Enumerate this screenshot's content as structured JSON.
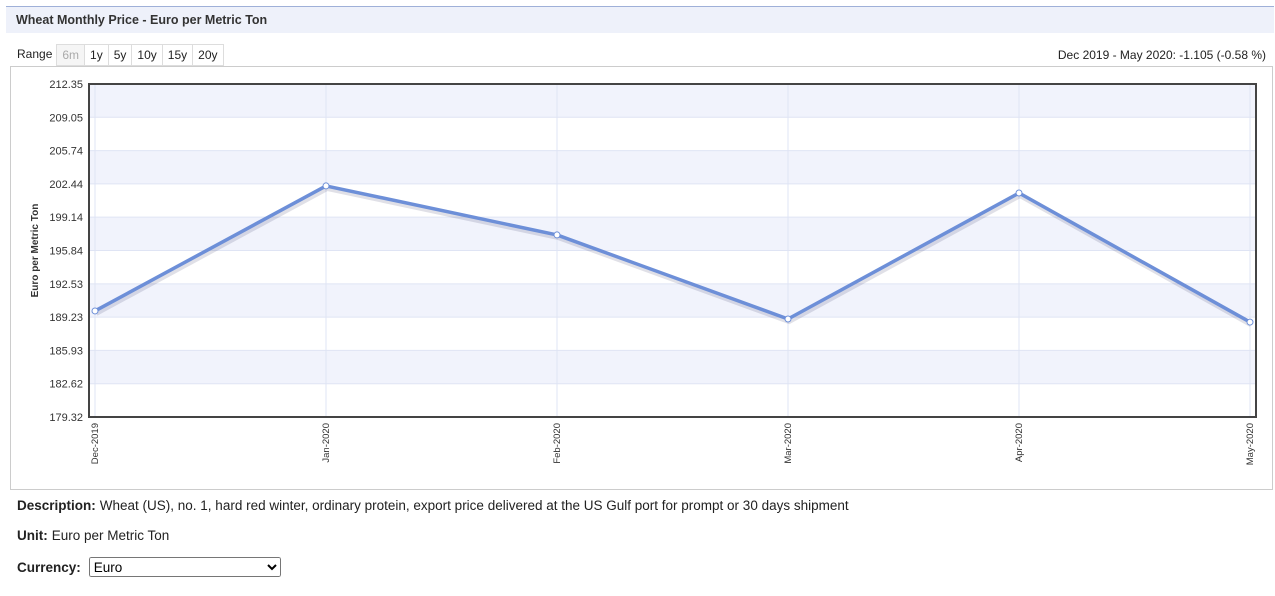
{
  "header": {
    "title": "Wheat Monthly Price - Euro per Metric Ton"
  },
  "range": {
    "label": "Range",
    "options": [
      "6m",
      "1y",
      "5y",
      "10y",
      "15y",
      "20y"
    ]
  },
  "change_text": "Dec 2019 - May 2020: -1.105 (-0.58 %)",
  "chart_data": {
    "type": "line",
    "y_label": "Euro per Metric Ton",
    "categories": [
      "Dec-2019",
      "Jan-2020",
      "Feb-2020",
      "Mar-2020",
      "Apr-2020",
      "May-2020"
    ],
    "values": [
      189.84,
      202.24,
      197.38,
      189.04,
      201.54,
      188.735
    ],
    "color": "#6d8fd8",
    "ylim": [
      179.32,
      212.35
    ],
    "yticks": [
      179.32,
      182.62,
      185.93,
      189.23,
      192.53,
      195.84,
      199.14,
      202.44,
      205.74,
      209.05,
      212.35
    ],
    "grid": true,
    "band_color": "#f1f3fc"
  },
  "description": {
    "label": "Description:",
    "text": "Wheat (US), no. 1, hard red winter, ordinary protein, export price delivered at the US Gulf port for prompt or 30 days shipment"
  },
  "unit": {
    "label": "Unit:",
    "text": "Euro per Metric Ton"
  },
  "currency": {
    "label": "Currency:",
    "value": "Euro"
  }
}
